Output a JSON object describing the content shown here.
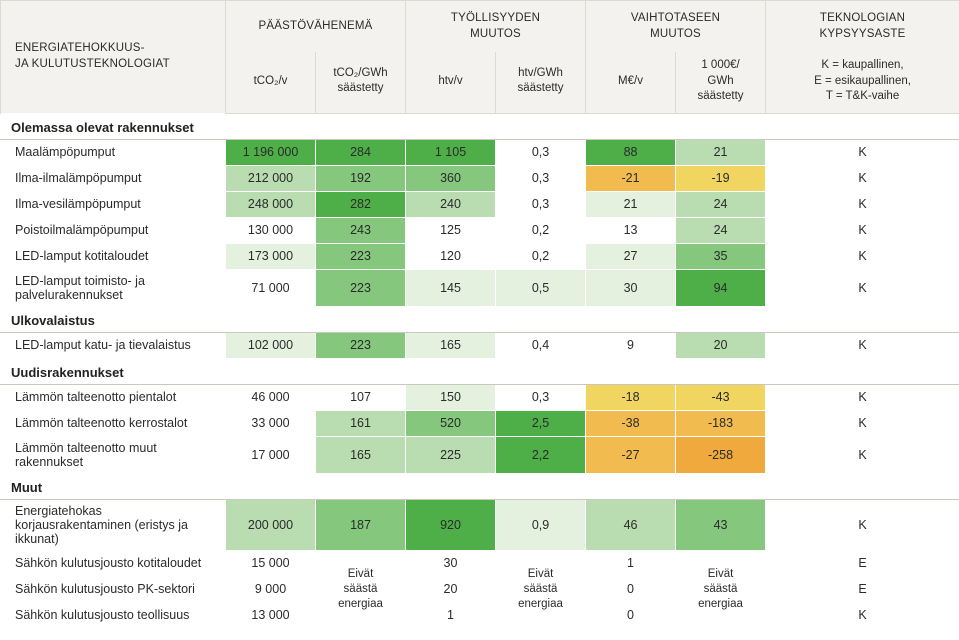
{
  "header": {
    "main": "ENERGIATEHOKKUUS-\nJA KULUTUSTEKNOLOGIAT",
    "groups": [
      {
        "title": "PÄÄSTÖVÄHENEMÄ",
        "sub": [
          "tCO₂/v",
          "tCO₂/GWh\nsäästetty"
        ]
      },
      {
        "title": "TYÖLLISYYDEN\nMUUTOS",
        "sub": [
          "htv/v",
          "htv/GWh\nsäästetty"
        ]
      },
      {
        "title": "VAIHTOTASEEN\nMUUTOS",
        "sub": [
          "M€/v",
          "1 000€/\nGWh\nsäästetty"
        ]
      }
    ],
    "last": "TEKNOLOGIAN\nKYPSYYSASTE",
    "legend": "K = kaupallinen,\nE = esikaupallinen,\nT = T&K-vaihe"
  },
  "colors": {
    "header_bg": "#f3f2ef",
    "border": "#dcdad4",
    "g_dark": "#4eaf49",
    "g_mid": "#84c77d",
    "g_light": "#b9dcb0",
    "g_vlight": "#e3f1de",
    "y_light": "#f4e37c",
    "y_mid": "#f0d660",
    "o_mid": "#f2bb4f",
    "o_dark": "#f0a93d",
    "white": "#ffffff"
  },
  "merged_note": "Eivät\nsäästä\nenergiaa",
  "sections": [
    {
      "title": "Olemassa olevat rakennukset",
      "rows": [
        {
          "label": "Maalämpöpumput",
          "cells": [
            {
              "v": "1 196 000",
              "c": "g_dark"
            },
            {
              "v": "284",
              "c": "g_dark"
            },
            {
              "v": "1 105",
              "c": "g_dark"
            },
            {
              "v": "0,3",
              "c": "white"
            },
            {
              "v": "88",
              "c": "g_dark"
            },
            {
              "v": "21",
              "c": "g_light"
            }
          ],
          "mat": "K"
        },
        {
          "label": "Ilma-ilmalämpöpumput",
          "cells": [
            {
              "v": "212 000",
              "c": "g_light"
            },
            {
              "v": "192",
              "c": "g_mid"
            },
            {
              "v": "360",
              "c": "g_mid"
            },
            {
              "v": "0,3",
              "c": "white"
            },
            {
              "v": "-21",
              "c": "o_mid"
            },
            {
              "v": "-19",
              "c": "y_mid"
            }
          ],
          "mat": "K"
        },
        {
          "label": "Ilma-vesilämpöpumput",
          "cells": [
            {
              "v": "248 000",
              "c": "g_light"
            },
            {
              "v": "282",
              "c": "g_dark"
            },
            {
              "v": "240",
              "c": "g_light"
            },
            {
              "v": "0,3",
              "c": "white"
            },
            {
              "v": "21",
              "c": "g_vlight"
            },
            {
              "v": "24",
              "c": "g_light"
            }
          ],
          "mat": "K"
        },
        {
          "label": "Poistoilmalämpöpumput",
          "cells": [
            {
              "v": "130 000",
              "c": "white"
            },
            {
              "v": "243",
              "c": "g_mid"
            },
            {
              "v": "125",
              "c": "white"
            },
            {
              "v": "0,2",
              "c": "white"
            },
            {
              "v": "13",
              "c": "white"
            },
            {
              "v": "24",
              "c": "g_light"
            }
          ],
          "mat": "K"
        },
        {
          "label": "LED-lamput kotitaloudet",
          "cells": [
            {
              "v": "173 000",
              "c": "g_vlight"
            },
            {
              "v": "223",
              "c": "g_mid"
            },
            {
              "v": "120",
              "c": "white"
            },
            {
              "v": "0,2",
              "c": "white"
            },
            {
              "v": "27",
              "c": "g_vlight"
            },
            {
              "v": "35",
              "c": "g_mid"
            }
          ],
          "mat": "K"
        },
        {
          "label": "LED-lamput toimisto- ja palvelurakennukset",
          "cells": [
            {
              "v": "71 000",
              "c": "white"
            },
            {
              "v": "223",
              "c": "g_mid"
            },
            {
              "v": "145",
              "c": "g_vlight"
            },
            {
              "v": "0,5",
              "c": "g_vlight"
            },
            {
              "v": "30",
              "c": "g_vlight"
            },
            {
              "v": "94",
              "c": "g_dark"
            }
          ],
          "mat": "K"
        }
      ]
    },
    {
      "title": "Ulkovalaistus",
      "rows": [
        {
          "label": "LED-lamput katu- ja tievalaistus",
          "cells": [
            {
              "v": "102 000",
              "c": "g_vlight"
            },
            {
              "v": "223",
              "c": "g_mid"
            },
            {
              "v": "165",
              "c": "g_vlight"
            },
            {
              "v": "0,4",
              "c": "white"
            },
            {
              "v": "9",
              "c": "white"
            },
            {
              "v": "20",
              "c": "g_light"
            }
          ],
          "mat": "K"
        }
      ]
    },
    {
      "title": "Uudisrakennukset",
      "rows": [
        {
          "label": "Lämmön talteenotto pientalot",
          "cells": [
            {
              "v": "46 000",
              "c": "white"
            },
            {
              "v": "107",
              "c": "white"
            },
            {
              "v": "150",
              "c": "g_vlight"
            },
            {
              "v": "0,3",
              "c": "white"
            },
            {
              "v": "-18",
              "c": "y_mid"
            },
            {
              "v": "-43",
              "c": "y_mid"
            }
          ],
          "mat": "K"
        },
        {
          "label": "Lämmön talteenotto kerrostalot",
          "cells": [
            {
              "v": "33 000",
              "c": "white"
            },
            {
              "v": "161",
              "c": "g_light"
            },
            {
              "v": "520",
              "c": "g_mid"
            },
            {
              "v": "2,5",
              "c": "g_dark"
            },
            {
              "v": "-38",
              "c": "o_mid"
            },
            {
              "v": "-183",
              "c": "o_mid"
            }
          ],
          "mat": "K"
        },
        {
          "label": "Lämmön talteenotto muut rakennukset",
          "cells": [
            {
              "v": "17 000",
              "c": "white"
            },
            {
              "v": "165",
              "c": "g_light"
            },
            {
              "v": "225",
              "c": "g_light"
            },
            {
              "v": "2,2",
              "c": "g_dark"
            },
            {
              "v": "-27",
              "c": "o_mid"
            },
            {
              "v": "-258",
              "c": "o_dark"
            }
          ],
          "mat": "K"
        }
      ]
    },
    {
      "title": "Muut",
      "rows": [
        {
          "label": "Energiatehokas korjausrakentaminen (eristys ja ikkunat)",
          "cells": [
            {
              "v": "200 000",
              "c": "g_light"
            },
            {
              "v": "187",
              "c": "g_mid"
            },
            {
              "v": "920",
              "c": "g_dark"
            },
            {
              "v": "0,9",
              "c": "g_vlight"
            },
            {
              "v": "46",
              "c": "g_light"
            },
            {
              "v": "43",
              "c": "g_mid"
            }
          ],
          "mat": "K"
        },
        {
          "label": "Sähkön kulutusjousto kotitaloudet",
          "cells": [
            {
              "v": "15 000",
              "c": "white"
            },
            null,
            {
              "v": "30",
              "c": "white"
            },
            null,
            {
              "v": "1",
              "c": "white"
            },
            null
          ],
          "mat": "E",
          "merge_start": true
        },
        {
          "label": "Sähkön kulutusjousto PK-sektori",
          "cells": [
            {
              "v": "9 000",
              "c": "white"
            },
            null,
            {
              "v": "20",
              "c": "white"
            },
            null,
            {
              "v": "0",
              "c": "white"
            },
            null
          ],
          "mat": "E"
        },
        {
          "label": "Sähkön kulutusjousto teollisuus",
          "cells": [
            {
              "v": "13 000",
              "c": "white"
            },
            null,
            {
              "v": "1",
              "c": "white"
            },
            null,
            {
              "v": "0",
              "c": "white"
            },
            null
          ],
          "mat": "K"
        }
      ]
    }
  ]
}
